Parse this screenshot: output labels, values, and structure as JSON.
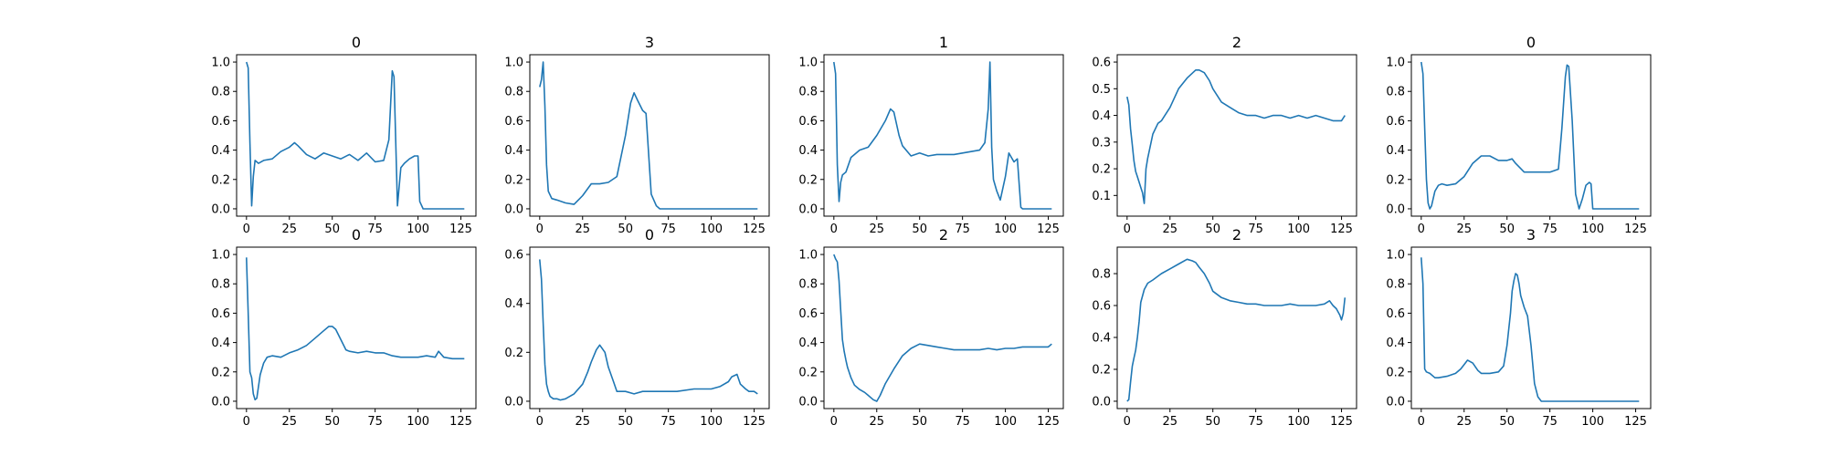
{
  "colors": {
    "series": "#1f77b4"
  },
  "chart_data": [
    {
      "type": "line",
      "title": "0",
      "xlim": [
        0,
        128
      ],
      "ylim": [
        0,
        1.0
      ],
      "xticks": [
        "0",
        "25",
        "50",
        "75",
        "100",
        "125"
      ],
      "yticks": [
        "0.0",
        "0.2",
        "0.4",
        "0.6",
        "0.8",
        "1.0"
      ],
      "series": [
        {
          "x": [
            0,
            1,
            2,
            3,
            4,
            5,
            7,
            10,
            15,
            20,
            25,
            28,
            30,
            35,
            40,
            45,
            50,
            55,
            60,
            65,
            70,
            75,
            80,
            83,
            85,
            86,
            88,
            90,
            92,
            95,
            98,
            100,
            101,
            103,
            110,
            120,
            127
          ],
          "y": [
            1.0,
            0.96,
            0.45,
            0.02,
            0.22,
            0.33,
            0.31,
            0.33,
            0.34,
            0.39,
            0.42,
            0.45,
            0.43,
            0.37,
            0.34,
            0.38,
            0.36,
            0.34,
            0.37,
            0.33,
            0.38,
            0.32,
            0.33,
            0.47,
            0.94,
            0.9,
            0.02,
            0.28,
            0.31,
            0.34,
            0.36,
            0.36,
            0.05,
            0.0,
            0.0,
            0.0,
            0.0
          ]
        }
      ]
    },
    {
      "type": "line",
      "title": "3",
      "xlim": [
        0,
        128
      ],
      "ylim": [
        0,
        1.0
      ],
      "xticks": [
        "0",
        "25",
        "50",
        "75",
        "100",
        "125"
      ],
      "yticks": [
        "0.0",
        "0.2",
        "0.4",
        "0.6",
        "0.8",
        "1.0"
      ],
      "series": [
        {
          "x": [
            0,
            1,
            2,
            3,
            4,
            5,
            7,
            10,
            15,
            20,
            25,
            30,
            35,
            40,
            45,
            50,
            53,
            55,
            57,
            60,
            62,
            65,
            68,
            70,
            80,
            90,
            100,
            110,
            120,
            127
          ],
          "y": [
            0.83,
            0.88,
            1.0,
            0.7,
            0.3,
            0.12,
            0.07,
            0.06,
            0.04,
            0.03,
            0.09,
            0.17,
            0.17,
            0.18,
            0.22,
            0.5,
            0.72,
            0.79,
            0.74,
            0.67,
            0.65,
            0.1,
            0.02,
            0.0,
            0.0,
            0.0,
            0.0,
            0.0,
            0.0,
            0.0
          ]
        }
      ]
    },
    {
      "type": "line",
      "title": "1",
      "xlim": [
        0,
        128
      ],
      "ylim": [
        0,
        1.0
      ],
      "xticks": [
        "0",
        "25",
        "50",
        "75",
        "100",
        "125"
      ],
      "yticks": [
        "0.0",
        "0.2",
        "0.4",
        "0.6",
        "0.8",
        "1.0"
      ],
      "series": [
        {
          "x": [
            0,
            1,
            2,
            3,
            4,
            5,
            7,
            10,
            15,
            20,
            25,
            30,
            33,
            35,
            38,
            40,
            45,
            50,
            55,
            60,
            70,
            80,
            85,
            88,
            90,
            91,
            92,
            93,
            95,
            97,
            100,
            102,
            105,
            107,
            109,
            110,
            120,
            127
          ],
          "y": [
            1.0,
            0.92,
            0.3,
            0.05,
            0.18,
            0.23,
            0.25,
            0.35,
            0.4,
            0.42,
            0.5,
            0.6,
            0.68,
            0.66,
            0.5,
            0.43,
            0.36,
            0.38,
            0.36,
            0.37,
            0.37,
            0.39,
            0.4,
            0.45,
            0.68,
            1.0,
            0.42,
            0.2,
            0.12,
            0.06,
            0.22,
            0.38,
            0.32,
            0.34,
            0.01,
            0.0,
            0.0,
            0.0
          ]
        }
      ]
    },
    {
      "type": "line",
      "title": "2",
      "xlim": [
        0,
        128
      ],
      "ylim": [
        0.05,
        0.6
      ],
      "xticks": [
        "0",
        "25",
        "50",
        "75",
        "100",
        "125"
      ],
      "yticks": [
        "0.1",
        "0.2",
        "0.3",
        "0.4",
        "0.5",
        "0.6"
      ],
      "series": [
        {
          "x": [
            0,
            1,
            2,
            3,
            4,
            5,
            6,
            7,
            8,
            9,
            10,
            11,
            12,
            15,
            18,
            20,
            25,
            30,
            35,
            40,
            42,
            45,
            48,
            50,
            55,
            60,
            65,
            70,
            75,
            80,
            85,
            90,
            95,
            100,
            105,
            110,
            115,
            120,
            125,
            127
          ],
          "y": [
            0.47,
            0.44,
            0.35,
            0.29,
            0.23,
            0.19,
            0.17,
            0.15,
            0.13,
            0.11,
            0.07,
            0.2,
            0.24,
            0.33,
            0.37,
            0.38,
            0.43,
            0.5,
            0.54,
            0.57,
            0.57,
            0.56,
            0.53,
            0.5,
            0.45,
            0.43,
            0.41,
            0.4,
            0.4,
            0.39,
            0.4,
            0.4,
            0.39,
            0.4,
            0.39,
            0.4,
            0.39,
            0.38,
            0.38,
            0.4
          ]
        }
      ]
    },
    {
      "type": "line",
      "title": "0",
      "xlim": [
        0,
        128
      ],
      "ylim": [
        0,
        1.0
      ],
      "xticks": [
        "0",
        "25",
        "50",
        "75",
        "100",
        "125"
      ],
      "yticks": [
        "0.0",
        "0.2",
        "0.4",
        "0.6",
        "0.8",
        "1.0"
      ],
      "series": [
        {
          "x": [
            0,
            1,
            2,
            3,
            4,
            5,
            6,
            8,
            10,
            12,
            15,
            20,
            25,
            30,
            35,
            40,
            45,
            50,
            53,
            55,
            60,
            65,
            70,
            75,
            80,
            82,
            84,
            85,
            86,
            88,
            90,
            92,
            94,
            96,
            98,
            99,
            100,
            110,
            120,
            127
          ],
          "y": [
            1.0,
            0.92,
            0.55,
            0.2,
            0.04,
            0.0,
            0.02,
            0.12,
            0.16,
            0.17,
            0.16,
            0.17,
            0.22,
            0.31,
            0.36,
            0.36,
            0.33,
            0.33,
            0.34,
            0.31,
            0.25,
            0.25,
            0.25,
            0.25,
            0.27,
            0.55,
            0.9,
            0.98,
            0.97,
            0.6,
            0.1,
            0.0,
            0.07,
            0.16,
            0.18,
            0.17,
            0.0,
            0.0,
            0.0,
            0.0
          ]
        }
      ]
    },
    {
      "type": "line",
      "title": "0",
      "xlim": [
        0,
        128
      ],
      "ylim": [
        0,
        1.0
      ],
      "xticks": [
        "0",
        "25",
        "50",
        "75",
        "100",
        "125"
      ],
      "yticks": [
        "0.0",
        "0.2",
        "0.4",
        "0.6",
        "0.8",
        "1.0"
      ],
      "series": [
        {
          "x": [
            0,
            1,
            2,
            3,
            4,
            5,
            6,
            8,
            10,
            12,
            15,
            20,
            25,
            30,
            35,
            40,
            45,
            48,
            50,
            52,
            55,
            58,
            60,
            65,
            70,
            75,
            80,
            85,
            90,
            95,
            100,
            105,
            110,
            112,
            115,
            120,
            125,
            127
          ],
          "y": [
            0.98,
            0.6,
            0.2,
            0.16,
            0.05,
            0.01,
            0.02,
            0.18,
            0.26,
            0.3,
            0.31,
            0.3,
            0.33,
            0.35,
            0.38,
            0.43,
            0.48,
            0.51,
            0.51,
            0.49,
            0.42,
            0.35,
            0.34,
            0.33,
            0.34,
            0.33,
            0.33,
            0.31,
            0.3,
            0.3,
            0.3,
            0.31,
            0.3,
            0.34,
            0.3,
            0.29,
            0.29,
            0.29
          ]
        }
      ]
    },
    {
      "type": "line",
      "title": "0",
      "xlim": [
        0,
        128
      ],
      "ylim": [
        0,
        0.6
      ],
      "xticks": [
        "0",
        "25",
        "50",
        "75",
        "100",
        "125"
      ],
      "yticks": [
        "0.0",
        "0.2",
        "0.4",
        "0.6"
      ],
      "series": [
        {
          "x": [
            0,
            1,
            2,
            3,
            4,
            5,
            6,
            8,
            10,
            12,
            15,
            20,
            25,
            28,
            30,
            33,
            35,
            38,
            40,
            43,
            45,
            50,
            55,
            60,
            70,
            80,
            90,
            100,
            105,
            110,
            112,
            115,
            117,
            120,
            122,
            125,
            127
          ],
          "y": [
            0.58,
            0.5,
            0.32,
            0.15,
            0.07,
            0.04,
            0.02,
            0.01,
            0.01,
            0.005,
            0.01,
            0.03,
            0.07,
            0.12,
            0.16,
            0.21,
            0.23,
            0.2,
            0.14,
            0.08,
            0.04,
            0.04,
            0.03,
            0.04,
            0.04,
            0.04,
            0.05,
            0.05,
            0.06,
            0.08,
            0.1,
            0.11,
            0.07,
            0.05,
            0.04,
            0.04,
            0.03
          ]
        }
      ]
    },
    {
      "type": "line",
      "title": "2",
      "xlim": [
        0,
        128
      ],
      "ylim": [
        0,
        1.0
      ],
      "xticks": [
        "0",
        "25",
        "50",
        "75",
        "100",
        "125"
      ],
      "yticks": [
        "0.0",
        "0.2",
        "0.4",
        "0.6",
        "0.8",
        "1.0"
      ],
      "series": [
        {
          "x": [
            0,
            1,
            2,
            3,
            4,
            5,
            6,
            7,
            8,
            10,
            12,
            15,
            18,
            20,
            23,
            25,
            27,
            30,
            35,
            40,
            45,
            50,
            55,
            60,
            65,
            70,
            75,
            80,
            85,
            90,
            95,
            100,
            105,
            110,
            115,
            120,
            125,
            127
          ],
          "y": [
            1.0,
            0.97,
            0.95,
            0.82,
            0.62,
            0.42,
            0.34,
            0.28,
            0.23,
            0.16,
            0.11,
            0.08,
            0.06,
            0.04,
            0.01,
            0.0,
            0.04,
            0.12,
            0.22,
            0.31,
            0.36,
            0.39,
            0.38,
            0.37,
            0.36,
            0.35,
            0.35,
            0.35,
            0.35,
            0.36,
            0.35,
            0.36,
            0.36,
            0.37,
            0.37,
            0.37,
            0.37,
            0.39
          ]
        }
      ]
    },
    {
      "type": "line",
      "title": "2",
      "xlim": [
        0,
        128
      ],
      "ylim": [
        0,
        0.92
      ],
      "xticks": [
        "0",
        "25",
        "50",
        "75",
        "100",
        "125"
      ],
      "yticks": [
        "0.0",
        "0.2",
        "0.4",
        "0.6",
        "0.8"
      ],
      "series": [
        {
          "x": [
            0,
            1,
            2,
            3,
            4,
            5,
            6,
            7,
            8,
            10,
            12,
            15,
            20,
            25,
            30,
            35,
            38,
            40,
            42,
            45,
            48,
            50,
            55,
            60,
            65,
            70,
            75,
            80,
            85,
            90,
            95,
            100,
            105,
            110,
            115,
            118,
            120,
            122,
            124,
            125,
            126,
            127
          ],
          "y": [
            0.0,
            0.01,
            0.12,
            0.22,
            0.27,
            0.32,
            0.4,
            0.5,
            0.62,
            0.7,
            0.74,
            0.76,
            0.8,
            0.83,
            0.86,
            0.89,
            0.88,
            0.87,
            0.84,
            0.8,
            0.74,
            0.69,
            0.65,
            0.63,
            0.62,
            0.61,
            0.61,
            0.6,
            0.6,
            0.6,
            0.61,
            0.6,
            0.6,
            0.6,
            0.61,
            0.63,
            0.6,
            0.58,
            0.54,
            0.51,
            0.55,
            0.65
          ]
        }
      ]
    },
    {
      "type": "line",
      "title": "3",
      "xlim": [
        0,
        128
      ],
      "ylim": [
        0,
        1.0
      ],
      "xticks": [
        "0",
        "25",
        "50",
        "75",
        "100",
        "125"
      ],
      "yticks": [
        "0.0",
        "0.2",
        "0.4",
        "0.6",
        "0.8",
        "1.0"
      ],
      "series": [
        {
          "x": [
            0,
            1,
            2,
            3,
            5,
            8,
            10,
            15,
            20,
            23,
            25,
            27,
            30,
            33,
            35,
            40,
            45,
            48,
            50,
            52,
            53,
            54,
            55,
            56,
            57,
            58,
            60,
            62,
            64,
            66,
            68,
            70,
            80,
            90,
            100,
            110,
            120,
            127
          ],
          "y": [
            0.98,
            0.8,
            0.22,
            0.2,
            0.19,
            0.16,
            0.16,
            0.17,
            0.19,
            0.22,
            0.25,
            0.28,
            0.26,
            0.21,
            0.19,
            0.19,
            0.2,
            0.24,
            0.38,
            0.6,
            0.75,
            0.82,
            0.87,
            0.86,
            0.8,
            0.72,
            0.64,
            0.58,
            0.38,
            0.12,
            0.03,
            0.0,
            0.0,
            0.0,
            0.0,
            0.0,
            0.0,
            0.0
          ]
        }
      ]
    }
  ]
}
